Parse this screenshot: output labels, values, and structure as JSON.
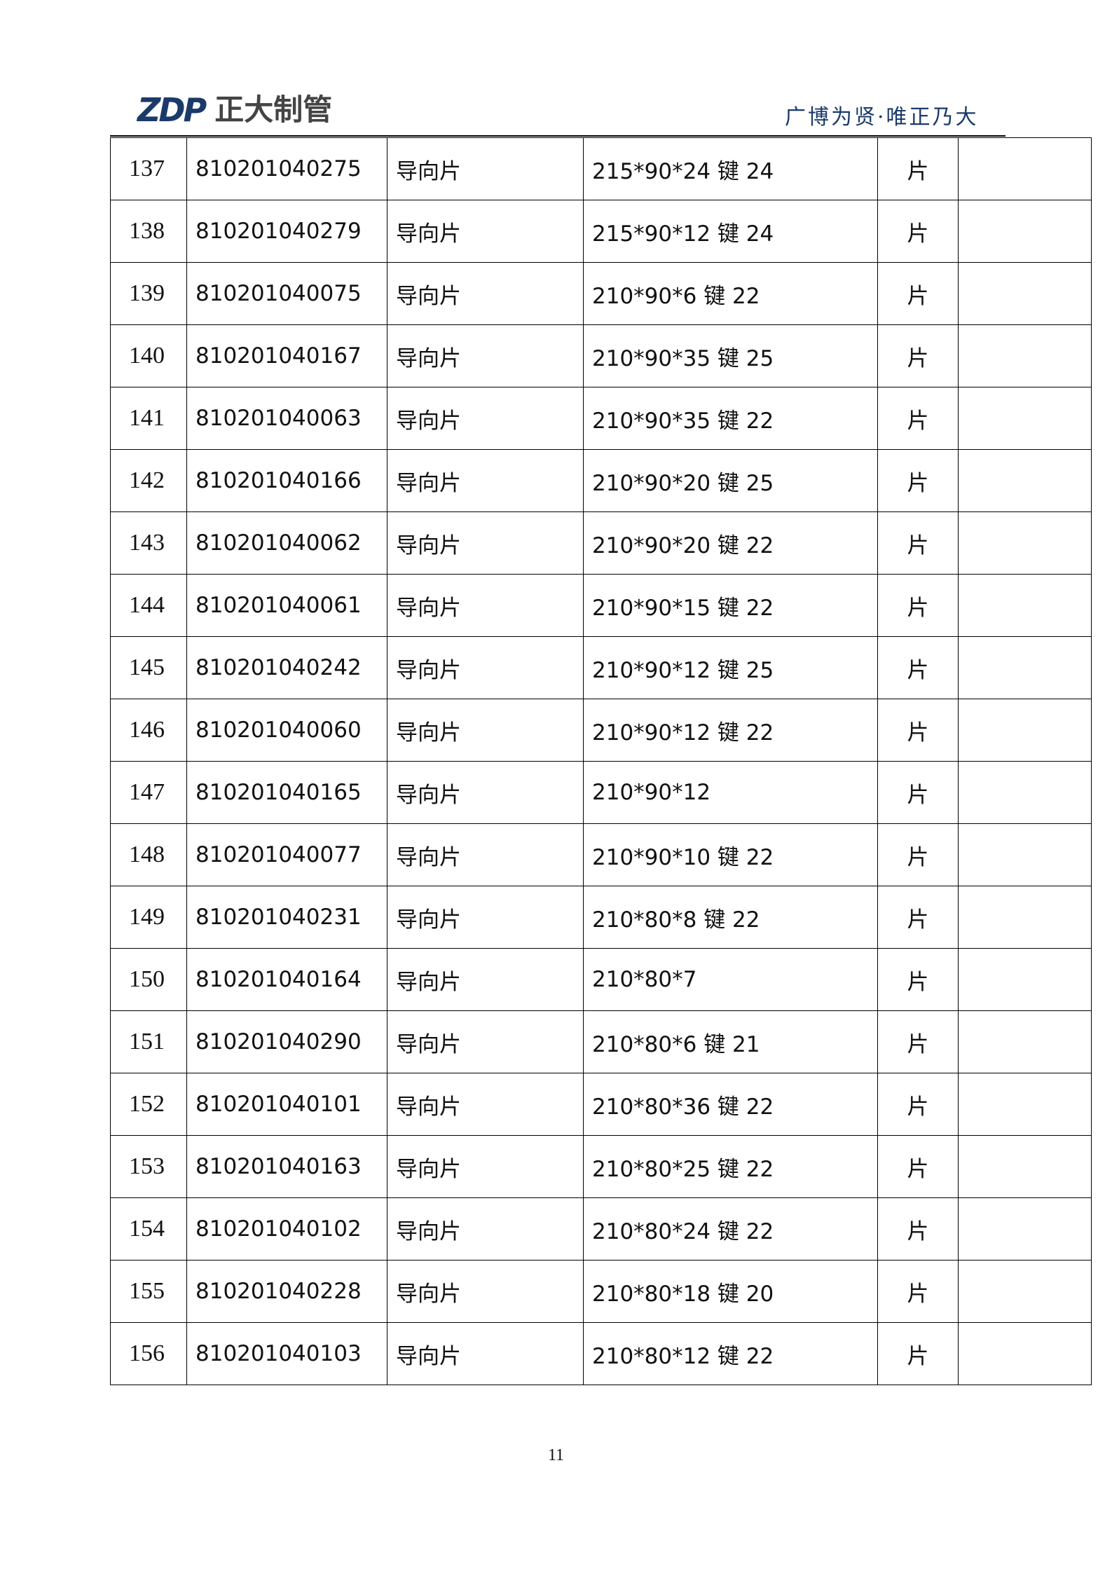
{
  "header": {
    "logo_mark": "ZDP",
    "logo_name": "正大制管",
    "slogan": "广博为贤·唯正乃大",
    "brand_color": "#1b3a6a"
  },
  "table": {
    "rows": [
      {
        "no": "137",
        "code": "810201040275",
        "name": "导向片",
        "spec": "215*90*24 键 24",
        "unit": "片",
        "remark": ""
      },
      {
        "no": "138",
        "code": "810201040279",
        "name": "导向片",
        "spec": "215*90*12 键 24",
        "unit": "片",
        "remark": ""
      },
      {
        "no": "139",
        "code": "810201040075",
        "name": "导向片",
        "spec": "210*90*6 键 22",
        "unit": "片",
        "remark": ""
      },
      {
        "no": "140",
        "code": "810201040167",
        "name": "导向片",
        "spec": "210*90*35 键 25",
        "unit": "片",
        "remark": ""
      },
      {
        "no": "141",
        "code": "810201040063",
        "name": "导向片",
        "spec": "210*90*35 键 22",
        "unit": "片",
        "remark": ""
      },
      {
        "no": "142",
        "code": "810201040166",
        "name": "导向片",
        "spec": "210*90*20 键 25",
        "unit": "片",
        "remark": ""
      },
      {
        "no": "143",
        "code": "810201040062",
        "name": "导向片",
        "spec": "210*90*20 键 22",
        "unit": "片",
        "remark": ""
      },
      {
        "no": "144",
        "code": "810201040061",
        "name": "导向片",
        "spec": "210*90*15 键 22",
        "unit": "片",
        "remark": ""
      },
      {
        "no": "145",
        "code": "810201040242",
        "name": "导向片",
        "spec": "210*90*12 键 25",
        "unit": "片",
        "remark": ""
      },
      {
        "no": "146",
        "code": "810201040060",
        "name": "导向片",
        "spec": "210*90*12 键 22",
        "unit": "片",
        "remark": ""
      },
      {
        "no": "147",
        "code": "810201040165",
        "name": "导向片",
        "spec": "210*90*12",
        "unit": "片",
        "remark": ""
      },
      {
        "no": "148",
        "code": "810201040077",
        "name": "导向片",
        "spec": "210*90*10 键 22",
        "unit": "片",
        "remark": ""
      },
      {
        "no": "149",
        "code": "810201040231",
        "name": "导向片",
        "spec": "210*80*8 键 22",
        "unit": "片",
        "remark": ""
      },
      {
        "no": "150",
        "code": "810201040164",
        "name": "导向片",
        "spec": "210*80*7",
        "unit": "片",
        "remark": ""
      },
      {
        "no": "151",
        "code": "810201040290",
        "name": "导向片",
        "spec": "210*80*6 键 21",
        "unit": "片",
        "remark": ""
      },
      {
        "no": "152",
        "code": "810201040101",
        "name": "导向片",
        "spec": "210*80*36 键 22",
        "unit": "片",
        "remark": ""
      },
      {
        "no": "153",
        "code": "810201040163",
        "name": "导向片",
        "spec": "210*80*25 键 22",
        "unit": "片",
        "remark": ""
      },
      {
        "no": "154",
        "code": "810201040102",
        "name": "导向片",
        "spec": "210*80*24 键 22",
        "unit": "片",
        "remark": ""
      },
      {
        "no": "155",
        "code": "810201040228",
        "name": "导向片",
        "spec": "210*80*18 键 20",
        "unit": "片",
        "remark": ""
      },
      {
        "no": "156",
        "code": "810201040103",
        "name": "导向片",
        "spec": "210*80*12 键 22",
        "unit": "片",
        "remark": ""
      }
    ]
  },
  "footer": {
    "page_number": "11"
  }
}
